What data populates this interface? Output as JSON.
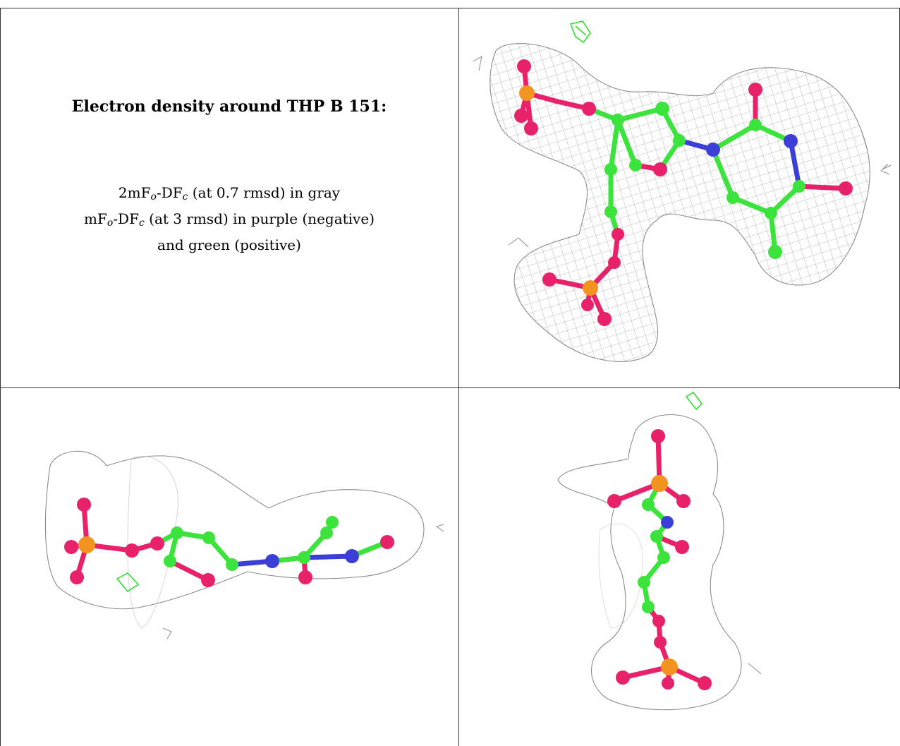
{
  "caption": {
    "title": "Electron density around THP B 151:",
    "map1": {
      "prefix": "2mF",
      "sub1": "o",
      "mid": "-DF",
      "sub2": "c",
      "suffix": " (at 0.7 rmsd) in gray"
    },
    "map2": {
      "prefix": "mF",
      "sub1": "o",
      "mid": "-DF",
      "sub2": "c",
      "suffix": " (at 3 rmsd) in purple (negative)"
    },
    "map3": "and green (positive)"
  },
  "colors": {
    "carbon": "#3ce33c",
    "oxygen": "#e8226a",
    "phosphorus": "#f39420",
    "nitrogen": "#3b3fd6",
    "mesh_gray": "#8c8c8c",
    "difference_positive": "#22dd22"
  },
  "panels": [
    {
      "id": "view-top",
      "label": ""
    },
    {
      "id": "view-side",
      "label": ""
    },
    {
      "id": "view-end",
      "label": ""
    }
  ]
}
